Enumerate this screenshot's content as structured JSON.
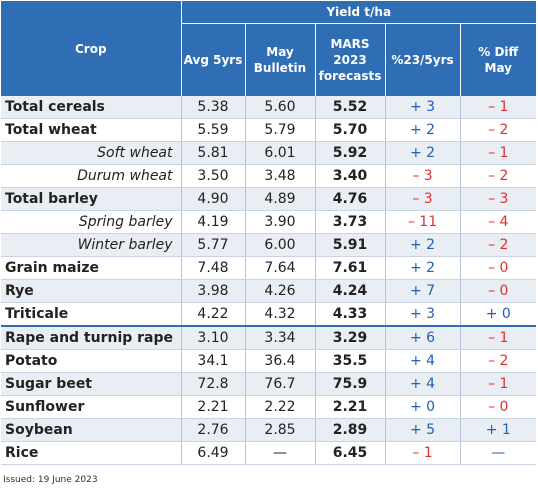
{
  "header": {
    "crop": "Crop",
    "group": "Yield t/ha",
    "avg": "Avg 5yrs",
    "may_line1": "May",
    "may_line2": "Bulletin",
    "mars_line1": "MARS",
    "mars_line2": "2023",
    "mars_line3": "forecasts",
    "pct": "%23/5yrs",
    "diff_line1": "% Diff",
    "diff_line2": "May"
  },
  "rows": [
    {
      "crop": "Total cereals",
      "avg": "5.38",
      "may": "5.60",
      "mars": "5.52",
      "pct": "+ 3",
      "diff": "– 1"
    },
    {
      "crop": "Total wheat",
      "avg": "5.59",
      "may": "5.79",
      "mars": "5.70",
      "pct": "+ 2",
      "diff": "– 2"
    },
    {
      "crop": "Soft wheat",
      "avg": "5.81",
      "may": "6.01",
      "mars": "5.92",
      "pct": "+ 2",
      "diff": "– 1"
    },
    {
      "crop": "Durum wheat",
      "avg": "3.50",
      "may": "3.48",
      "mars": "3.40",
      "pct": "– 3",
      "diff": "– 2"
    },
    {
      "crop": "Total barley",
      "avg": "4.90",
      "may": "4.89",
      "mars": "4.76",
      "pct": "– 3",
      "diff": "– 3"
    },
    {
      "crop": "Spring barley",
      "avg": "4.19",
      "may": "3.90",
      "mars": "3.73",
      "pct": "– 11",
      "diff": "– 4"
    },
    {
      "crop": "Winter barley",
      "avg": "5.77",
      "may": "6.00",
      "mars": "5.91",
      "pct": "+ 2",
      "diff": "– 2"
    },
    {
      "crop": "Grain maize",
      "avg": "7.48",
      "may": "7.64",
      "mars": "7.61",
      "pct": "+ 2",
      "diff": "– 0"
    },
    {
      "crop": "Rye",
      "avg": "3.98",
      "may": "4.26",
      "mars": "4.24",
      "pct": "+ 7",
      "diff": "– 0"
    },
    {
      "crop": "Triticale",
      "avg": "4.22",
      "may": "4.32",
      "mars": "4.33",
      "pct": "+ 3",
      "diff": "+ 0"
    },
    {
      "crop": "Rape and turnip rape",
      "avg": "3.10",
      "may": "3.34",
      "mars": "3.29",
      "pct": "+ 6",
      "diff": "– 1"
    },
    {
      "crop": "Potato",
      "avg": "34.1",
      "may": "36.4",
      "mars": "35.5",
      "pct": "+ 4",
      "diff": "– 2"
    },
    {
      "crop": "Sugar beet",
      "avg": "72.8",
      "may": "76.7",
      "mars": "75.9",
      "pct": "+ 4",
      "diff": "– 1"
    },
    {
      "crop": "Sunflower",
      "avg": "2.21",
      "may": "2.22",
      "mars": "2.21",
      "pct": "+ 0",
      "diff": "– 0"
    },
    {
      "crop": "Soybean",
      "avg": "2.76",
      "may": "2.85",
      "mars": "2.89",
      "pct": "+ 5",
      "diff": "+ 1"
    },
    {
      "crop": "Rice",
      "avg": "6.49",
      "may": "—",
      "mars": "6.45",
      "pct": "– 1",
      "diff": "—"
    }
  ],
  "footer": {
    "issued": "Issued: 19 June 2023"
  },
  "colors": {
    "header_bg": "#2f6db5",
    "positive": "#1f5fb4",
    "negative": "#e03030",
    "row_shade": "#e9eef5"
  }
}
